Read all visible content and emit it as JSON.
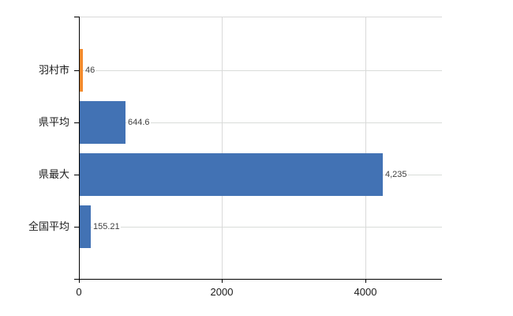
{
  "chart_data": {
    "type": "bar",
    "orientation": "horizontal",
    "title": "",
    "categories": [
      "羽村市",
      "県平均",
      "県最大",
      "全国平均"
    ],
    "values": [
      46,
      644.6,
      4235,
      155.21
    ],
    "value_labels": [
      "46",
      "644.6",
      "4,235",
      "155.21"
    ],
    "bar_colors": [
      "#f58b2e",
      "#4272b4",
      "#4272b4",
      "#4272b4"
    ],
    "highlight_category": "羽村市",
    "xlim": [
      0,
      5074
    ],
    "x_ticks": [
      0,
      2000,
      4000
    ],
    "x_tick_labels": [
      "0",
      "2000",
      "4000"
    ],
    "grid": true,
    "legend": "none"
  },
  "colors": {
    "background": "#ffffff",
    "axis": "#000000",
    "gridline": "#d9d9d9",
    "bar_default": "#4272b4",
    "bar_highlight": "#f58b2e",
    "value_label_text": "#404040",
    "tick_label_text": "#1a1a1a"
  }
}
